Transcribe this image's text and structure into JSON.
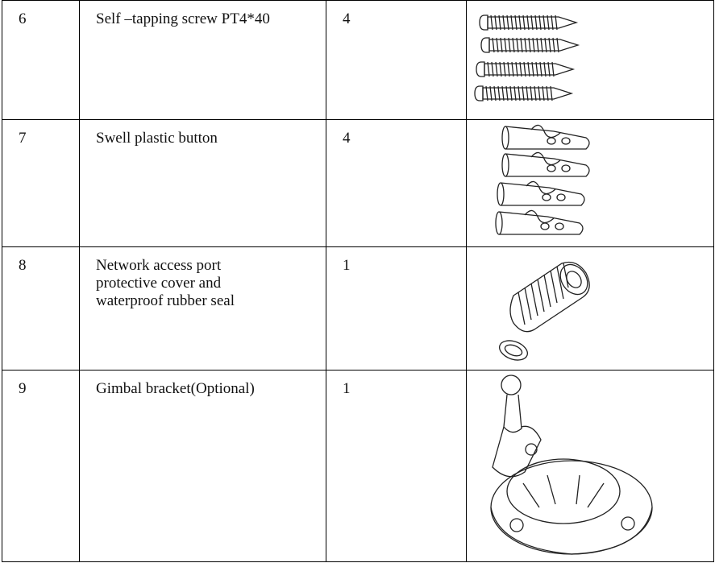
{
  "table": {
    "rows": [
      [
        "6",
        "Self –tapping screw PT4*40",
        "4"
      ],
      [
        "7",
        "Swell plastic button",
        "4"
      ],
      [
        "8",
        [
          "Network access port",
          "protective cover and",
          "waterproof rubber seal"
        ],
        "1"
      ],
      [
        "9",
        "Gimbal bracket(Optional)",
        "1"
      ]
    ]
  }
}
